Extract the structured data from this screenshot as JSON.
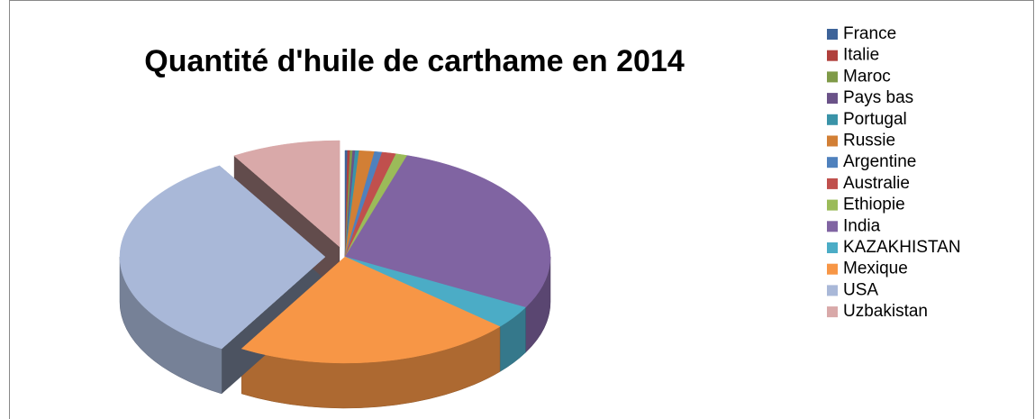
{
  "chart_data": {
    "type": "pie3d",
    "title": "Quantité d'huile de carthame en 2014",
    "categories": [
      "France",
      "Italie",
      "Maroc",
      "Pays bas",
      "Portugal",
      "Russie",
      "Argentine",
      "Australie",
      "Ethiopie",
      "India",
      "KAZAKHISTAN",
      "Mexique",
      "USA",
      "Uzbakistan"
    ],
    "values": [
      0.2,
      0.2,
      0.2,
      0.2,
      0.3,
      1.2,
      0.6,
      1.1,
      0.9,
      28,
      3.5,
      22,
      33,
      8.6
    ],
    "colors": [
      "#3d6399",
      "#b0403c",
      "#7f9a48",
      "#6a5288",
      "#3a93a8",
      "#d27f35",
      "#4f81bd",
      "#c0504d",
      "#9bbb59",
      "#8064a2",
      "#4bacc6",
      "#f79646",
      "#a9b8d8",
      "#d9a9a9"
    ],
    "legend": "right"
  }
}
